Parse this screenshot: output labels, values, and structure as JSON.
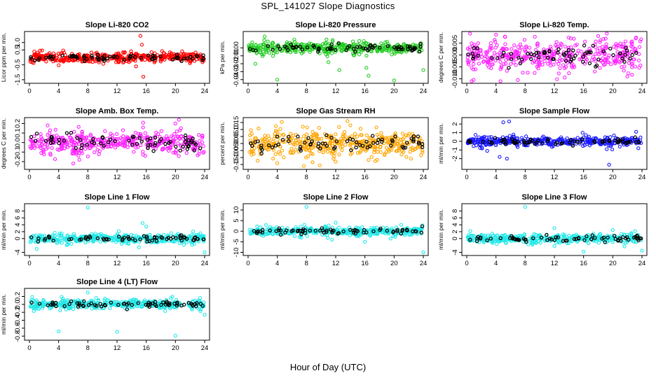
{
  "title": "SPL_141027  Slope Diagnostics",
  "xlabel": "Hour of Day (UTC)",
  "colors": {
    "black": "#000000",
    "red": "#ff0000",
    "green": "#22cc22",
    "magenta": "#ff22ff",
    "orange": "#ffa500",
    "blue": "#1a1aff",
    "cyan": "#22e8e8"
  },
  "chart_data": [
    {
      "type": "scatter",
      "title": "Slope Li-820 CO2",
      "ylabel": "Licor ppm per min.",
      "color": "red",
      "xlim": [
        0,
        24
      ],
      "ylim": [
        -1.6,
        1.6
      ],
      "xticks": [
        0,
        4,
        8,
        12,
        16,
        20,
        24
      ],
      "yticks": [
        -1.5,
        -0.5,
        0.5,
        1.0
      ],
      "ytick_labels": [
        "-1.5",
        "-0.5",
        "0.5",
        "1.0"
      ],
      "spread": 0.22,
      "outliers": [
        [
          15.2,
          1.45
        ],
        [
          15.4,
          0.85
        ],
        [
          14.6,
          -0.6
        ],
        [
          15.6,
          -1.3
        ]
      ],
      "seed": 11
    },
    {
      "type": "scatter",
      "title": "Slope Li-820 Pressure",
      "ylabel": "kPa per min.",
      "color": "green",
      "xlim": [
        0,
        24
      ],
      "ylim": [
        -0.042,
        0.018
      ],
      "xticks": [
        0,
        4,
        8,
        12,
        16,
        20,
        24
      ],
      "yticks": [
        -0.04,
        -0.03,
        -0.02,
        -0.01,
        0.0
      ],
      "ytick_labels": [
        "-0.04",
        "-0.03",
        "-0.02",
        "-0.01",
        "0.00"
      ],
      "spread": 0.0045,
      "outliers": [
        [
          4,
          -0.04
        ],
        [
          12.5,
          -0.028
        ],
        [
          16.2,
          -0.025
        ],
        [
          16.5,
          -0.035
        ],
        [
          20,
          -0.041
        ],
        [
          24,
          -0.028
        ],
        [
          1,
          -0.02
        ],
        [
          11,
          -0.018
        ]
      ],
      "seed": 22
    },
    {
      "type": "scatter",
      "title": "Slope Li-820 Temp.",
      "ylabel": "degrees C per min.",
      "color": "magenta",
      "xlim": [
        0,
        24
      ],
      "ylim": [
        -0.011,
        0.009
      ],
      "xticks": [
        0,
        4,
        8,
        12,
        16,
        20,
        24
      ],
      "yticks": [
        -0.01,
        -0.005,
        0.0,
        0.005
      ],
      "ytick_labels": [
        "-0.010",
        "-0.005",
        "0.000",
        "0.005"
      ],
      "spread": 0.0042,
      "outliers": [
        [
          7,
          -0.0105
        ],
        [
          18,
          0.008
        ],
        [
          22,
          -0.009
        ]
      ],
      "seed": 33
    },
    {
      "type": "scatter",
      "title": "Slope Amb. Box Temp.",
      "ylabel": "degrees C per min.",
      "color": "magenta",
      "xlim": [
        0,
        24
      ],
      "ylim": [
        -0.26,
        0.24
      ],
      "xticks": [
        0,
        4,
        8,
        12,
        16,
        20,
        24
      ],
      "yticks": [
        -0.2,
        -0.1,
        0.0,
        0.1,
        0.2
      ],
      "ytick_labels": [
        "-0.2",
        "-0.1",
        "0.0",
        "0.1",
        "0.2"
      ],
      "spread": 0.08,
      "outliers": [
        [
          6,
          -0.22
        ],
        [
          20,
          0.2
        ],
        [
          2.5,
          0.18
        ]
      ],
      "seed": 44
    },
    {
      "type": "scatter",
      "title": "Slope Gas Stream RH",
      "ylabel": "percent per min.",
      "color": "orange",
      "xlim": [
        0,
        24
      ],
      "ylim": [
        -0.17,
        0.17
      ],
      "xticks": [
        0,
        4,
        8,
        12,
        16,
        20,
        24
      ],
      "yticks": [
        -0.15,
        -0.1,
        -0.05,
        0.0,
        0.05,
        0.1,
        0.15
      ],
      "ytick_labels": [
        "-0.15",
        "-0.10",
        "-0.05",
        "0.00",
        "0.05",
        "0.10",
        "0.15"
      ],
      "spread": 0.065,
      "outliers": [
        [
          4,
          -0.14
        ],
        [
          12,
          -0.13
        ],
        [
          7.5,
          0.12
        ],
        [
          14,
          0.13
        ]
      ],
      "seed": 55
    },
    {
      "type": "scatter",
      "title": "Slope Sample Flow",
      "ylabel": "ml/min per min.",
      "color": "blue",
      "xlim": [
        0,
        24
      ],
      "ylim": [
        -3.0,
        2.5
      ],
      "xticks": [
        0,
        4,
        8,
        12,
        16,
        20,
        24
      ],
      "yticks": [
        -2,
        -1,
        0,
        1,
        2
      ],
      "ytick_labels": [
        "-2",
        "-1",
        "0",
        "1",
        "2"
      ],
      "spread": 0.35,
      "outliers": [
        [
          5,
          2.2
        ],
        [
          5.8,
          2.3
        ],
        [
          4.5,
          -1.8
        ],
        [
          5.5,
          -2.0
        ],
        [
          19.5,
          -2.7
        ],
        [
          23.2,
          1.1
        ],
        [
          23.5,
          -0.8
        ],
        [
          2.8,
          -1.1
        ]
      ],
      "seed": 66
    },
    {
      "type": "scatter",
      "title": "Slope Line 1 Flow",
      "ylabel": "ml/min per min.",
      "color": "cyan",
      "xlim": [
        0,
        24
      ],
      "ylim": [
        -4.3,
        9.5
      ],
      "xticks": [
        0,
        4,
        8,
        12,
        16,
        20,
        24
      ],
      "yticks": [
        -4,
        0,
        2,
        4,
        6,
        8
      ],
      "ytick_labels": [
        "-4",
        "0",
        "2",
        "4",
        "6",
        "8"
      ],
      "spread": 0.9,
      "outliers": [
        [
          8,
          9.0
        ],
        [
          15.5,
          4.5
        ],
        [
          16,
          3.5
        ],
        [
          15,
          -2.5
        ],
        [
          24,
          -4.0
        ],
        [
          1,
          -3.0
        ]
      ],
      "seed": 77
    },
    {
      "type": "scatter",
      "title": "Slope Line 2 Flow",
      "ylabel": "ml/min per min.",
      "color": "cyan",
      "xlim": [
        0,
        24
      ],
      "ylim": [
        -10.5,
        12
      ],
      "xticks": [
        0,
        4,
        8,
        12,
        16,
        20,
        24
      ],
      "yticks": [
        -10,
        -5,
        0,
        5,
        10
      ],
      "ytick_labels": [
        "-10",
        "-5",
        "0",
        "5",
        "10"
      ],
      "spread": 1.3,
      "outliers": [
        [
          8,
          11.5
        ],
        [
          24,
          -10
        ],
        [
          12,
          4
        ],
        [
          16,
          -5
        ],
        [
          11.5,
          -4
        ]
      ],
      "seed": 88
    },
    {
      "type": "scatter",
      "title": "Slope Line 3 Flow",
      "ylabel": "ml/min per min.",
      "color": "cyan",
      "xlim": [
        0,
        24
      ],
      "ylim": [
        -4.3,
        9.5
      ],
      "xticks": [
        0,
        4,
        8,
        12,
        16,
        20,
        24
      ],
      "yticks": [
        -4,
        0,
        2,
        4,
        6,
        8
      ],
      "ytick_labels": [
        "-4",
        "0",
        "2",
        "4",
        "6",
        "8"
      ],
      "spread": 0.8,
      "outliers": [
        [
          8,
          9.2
        ],
        [
          12,
          3.0
        ],
        [
          12,
          -2.2
        ],
        [
          16,
          -3.8
        ],
        [
          24,
          -3.5
        ],
        [
          20,
          2.5
        ]
      ],
      "seed": 99
    },
    {
      "type": "scatter",
      "title": "Slope Line 4 (LT) Flow",
      "ylabel": "ml/min per min.",
      "color": "cyan",
      "xlim": [
        0,
        24
      ],
      "ylim": [
        -0.85,
        0.35
      ],
      "xticks": [
        0,
        4,
        8,
        12,
        16,
        20,
        24
      ],
      "yticks": [
        -0.8,
        -0.6,
        -0.4,
        -0.2,
        0.0,
        0.2
      ],
      "ytick_labels": [
        "-0.8",
        "-0.6",
        "-0.4",
        "-0.2",
        "0.0",
        "0.2"
      ],
      "spread": 0.07,
      "outliers": [
        [
          4,
          -0.68
        ],
        [
          12,
          -0.69
        ],
        [
          20,
          -0.79
        ],
        [
          24,
          -0.26
        ],
        [
          8,
          0.3
        ]
      ],
      "seed": 111
    }
  ]
}
